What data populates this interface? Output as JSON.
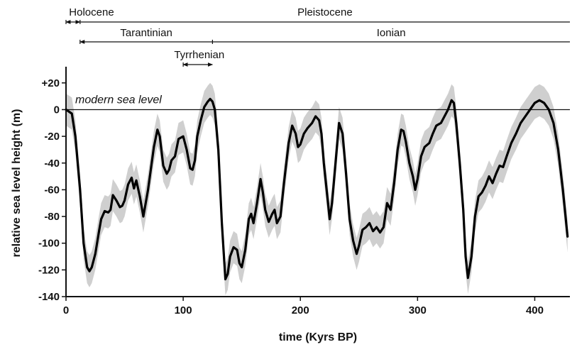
{
  "chart_data": {
    "type": "line",
    "xlabel": "time (Kyrs BP)",
    "ylabel": "relative sea level height (m)",
    "xlim": [
      0,
      430
    ],
    "ylim": [
      -140,
      30
    ],
    "xticks": [
      0,
      100,
      200,
      300,
      400
    ],
    "xtick_labels": [
      "0",
      "100",
      "200",
      "300",
      "400"
    ],
    "yticks": [
      20,
      0,
      -20,
      -40,
      -60,
      -80,
      -100,
      -120,
      -140
    ],
    "ytick_labels": [
      "+20",
      "0",
      "-20",
      "-40",
      "-60",
      "-80",
      "-100",
      "-120",
      "-140"
    ],
    "grid": false,
    "reference_line": {
      "y": 0,
      "label": "modern sea level"
    },
    "series": [
      {
        "color": "#000000",
        "x": [
          0,
          5,
          8,
          12,
          15,
          18,
          20,
          22,
          25,
          28,
          30,
          33,
          36,
          38,
          40,
          43,
          46,
          48,
          50,
          53,
          56,
          58,
          60,
          63,
          66,
          70,
          75,
          78,
          80,
          83,
          86,
          88,
          90,
          93,
          96,
          100,
          103,
          106,
          108,
          110,
          112,
          115,
          118,
          121,
          123,
          125,
          127,
          130,
          133,
          136,
          138,
          140,
          143,
          146,
          148,
          150,
          153,
          156,
          158,
          160,
          163,
          166,
          168,
          170,
          173,
          176,
          178,
          180,
          183,
          186,
          190,
          193,
          196,
          198,
          200,
          203,
          206,
          210,
          213,
          216,
          218,
          220,
          223,
          225,
          227,
          230,
          233,
          236,
          239,
          242,
          245,
          248,
          250,
          253,
          256,
          259,
          262,
          265,
          268,
          271,
          274,
          277,
          280,
          283,
          286,
          288,
          290,
          293,
          296,
          298,
          300,
          303,
          306,
          310,
          313,
          316,
          320,
          323,
          326,
          329,
          331,
          333,
          336,
          339,
          341,
          343,
          346,
          349,
          352,
          355,
          358,
          361,
          364,
          367,
          370,
          373,
          376,
          380,
          384,
          388,
          392,
          396,
          400,
          404,
          408,
          412,
          416,
          420,
          424,
          428
        ],
        "values": [
          0,
          -3,
          -20,
          -60,
          -100,
          -118,
          -121,
          -118,
          -108,
          -92,
          -82,
          -76,
          -77,
          -75,
          -64,
          -68,
          -73,
          -72,
          -68,
          -56,
          -51,
          -59,
          -53,
          -65,
          -80,
          -60,
          -28,
          -15,
          -20,
          -42,
          -48,
          -45,
          -38,
          -35,
          -22,
          -20,
          -30,
          -44,
          -45,
          -38,
          -20,
          -8,
          2,
          6,
          8,
          6,
          0,
          -30,
          -85,
          -127,
          -123,
          -110,
          -103,
          -105,
          -115,
          -118,
          -105,
          -82,
          -78,
          -85,
          -70,
          -52,
          -62,
          -75,
          -84,
          -78,
          -75,
          -85,
          -80,
          -55,
          -25,
          -12,
          -18,
          -28,
          -26,
          -18,
          -14,
          -10,
          -5,
          -8,
          -18,
          -40,
          -65,
          -82,
          -70,
          -40,
          -10,
          -18,
          -48,
          -82,
          -98,
          -108,
          -102,
          -90,
          -88,
          -85,
          -91,
          -88,
          -92,
          -88,
          -70,
          -75,
          -55,
          -30,
          -15,
          -16,
          -24,
          -40,
          -50,
          -60,
          -52,
          -35,
          -28,
          -25,
          -18,
          -12,
          -10,
          -5,
          0,
          7,
          5,
          -10,
          -40,
          -75,
          -110,
          -126,
          -110,
          -80,
          -65,
          -62,
          -57,
          -50,
          -55,
          -48,
          -42,
          -43,
          -35,
          -25,
          -18,
          -10,
          -5,
          0,
          5,
          7,
          5,
          0,
          -10,
          -30,
          -60,
          -95
        ],
        "uncertainty_halfwidth_m": 12
      }
    ],
    "period_bars": [
      {
        "label": "Holocene",
        "row": 1,
        "x_start": 0,
        "x_end": 12,
        "arrow_start": true,
        "arrow_end": true
      },
      {
        "label": "Pleistocene",
        "row": 1,
        "x_start": 12,
        "x_end": 430,
        "arrow_start": false,
        "arrow_end": false
      },
      {
        "label": "Tarantinian",
        "row": 2,
        "x_start": 12,
        "x_end": 125,
        "arrow_start": true,
        "arrow_end": false
      },
      {
        "label": "Ionian",
        "row": 2,
        "x_start": 125,
        "x_end": 430,
        "arrow_start": false,
        "arrow_end": false
      },
      {
        "label": "Tyrrhenian",
        "row": 3,
        "x_start": 100,
        "x_end": 125,
        "arrow_start": true,
        "arrow_end": true
      }
    ]
  }
}
